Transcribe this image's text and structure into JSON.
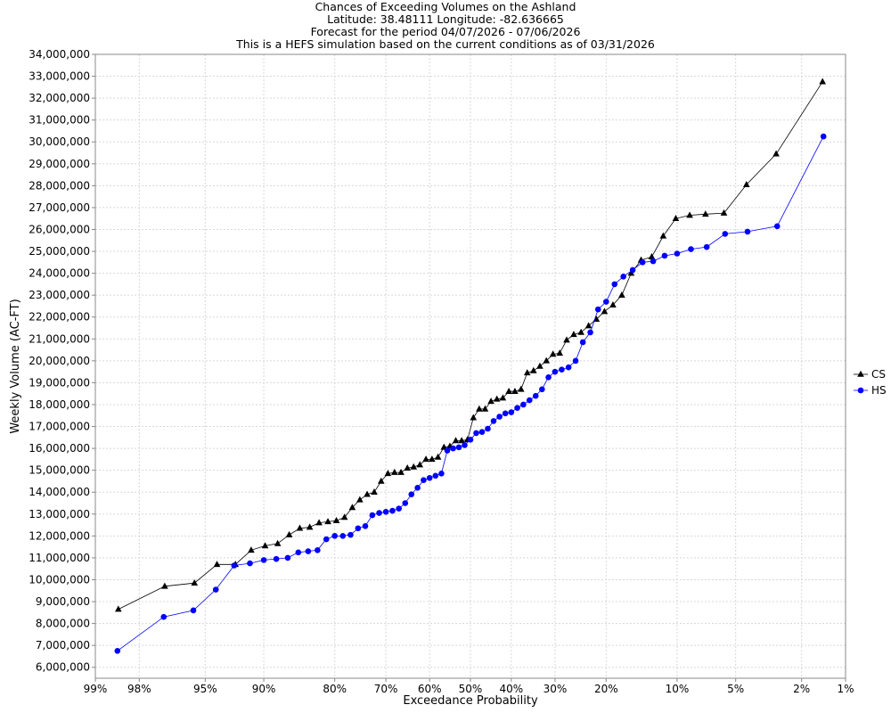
{
  "chart_data": {
    "type": "line",
    "title_lines": [
      "Chances of Exceeding Volumes on the Ashland",
      "Latitude: 38.48111 Longitude: -82.636665",
      "Forecast for the period 04/07/2026 - 07/06/2026",
      "This is a HEFS simulation based on the current conditions as of 03/31/2026"
    ],
    "xlabel": "Exceedance Probability",
    "ylabel": "Weekly Volume (AC-FT)",
    "x_scale": "normal-probability",
    "x_ticks": [
      {
        "p": 0.99,
        "label": "99%"
      },
      {
        "p": 0.98,
        "label": "98%"
      },
      {
        "p": 0.95,
        "label": "95%"
      },
      {
        "p": 0.9,
        "label": "90%"
      },
      {
        "p": 0.8,
        "label": "80%"
      },
      {
        "p": 0.7,
        "label": "70%"
      },
      {
        "p": 0.6,
        "label": "60%"
      },
      {
        "p": 0.5,
        "label": "50%"
      },
      {
        "p": 0.4,
        "label": "40%"
      },
      {
        "p": 0.3,
        "label": "30%"
      },
      {
        "p": 0.2,
        "label": "20%"
      },
      {
        "p": 0.1,
        "label": "10%"
      },
      {
        "p": 0.05,
        "label": "5%"
      },
      {
        "p": 0.02,
        "label": "2%"
      },
      {
        "p": 0.01,
        "label": "1%"
      }
    ],
    "ylim": [
      5500000,
      34000000
    ],
    "y_ticks": [
      {
        "v": 6000000,
        "label": "6,000,000"
      },
      {
        "v": 7000000,
        "label": "7,000,000"
      },
      {
        "v": 8000000,
        "label": "8,000,000"
      },
      {
        "v": 9000000,
        "label": "9,000,000"
      },
      {
        "v": 10000000,
        "label": "10,000,000"
      },
      {
        "v": 11000000,
        "label": "11,000,000"
      },
      {
        "v": 12000000,
        "label": "12,000,000"
      },
      {
        "v": 13000000,
        "label": "13,000,000"
      },
      {
        "v": 14000000,
        "label": "14,000,000"
      },
      {
        "v": 15000000,
        "label": "15,000,000"
      },
      {
        "v": 16000000,
        "label": "16,000,000"
      },
      {
        "v": 17000000,
        "label": "17,000,000"
      },
      {
        "v": 18000000,
        "label": "18,000,000"
      },
      {
        "v": 19000000,
        "label": "19,000,000"
      },
      {
        "v": 20000000,
        "label": "20,000,000"
      },
      {
        "v": 21000000,
        "label": "21,000,000"
      },
      {
        "v": 22000000,
        "label": "22,000,000"
      },
      {
        "v": 23000000,
        "label": "23,000,000"
      },
      {
        "v": 24000000,
        "label": "24,000,000"
      },
      {
        "v": 25000000,
        "label": "25,000,000"
      },
      {
        "v": 26000000,
        "label": "26,000,000"
      },
      {
        "v": 27000000,
        "label": "27,000,000"
      },
      {
        "v": 28000000,
        "label": "28,000,000"
      },
      {
        "v": 29000000,
        "label": "29,000,000"
      },
      {
        "v": 30000000,
        "label": "30,000,000"
      },
      {
        "v": 31000000,
        "label": "31,000,000"
      },
      {
        "v": 32000000,
        "label": "32,000,000"
      },
      {
        "v": 33000000,
        "label": "33,000,000"
      },
      {
        "v": 34000000,
        "label": "34,000,000"
      }
    ],
    "grid": true,
    "legend_position": "right",
    "series": [
      {
        "name": "CS",
        "color": "#000000",
        "marker": "triangle",
        "values": [
          8650000,
          9700000,
          9850000,
          10700000,
          10700000,
          11350000,
          11550000,
          11650000,
          12050000,
          12350000,
          12400000,
          12600000,
          12650000,
          12700000,
          12850000,
          13300000,
          13650000,
          13900000,
          14000000,
          14500000,
          14850000,
          14900000,
          14900000,
          15100000,
          15150000,
          15250000,
          15500000,
          15500000,
          15600000,
          16050000,
          16100000,
          16350000,
          16350000,
          16400000,
          17400000,
          17800000,
          17800000,
          18150000,
          18250000,
          18300000,
          18600000,
          18600000,
          18700000,
          19450000,
          19550000,
          19750000,
          20000000,
          20300000,
          20350000,
          20950000,
          21200000,
          21300000,
          21600000,
          21900000,
          22250000,
          22550000,
          23000000,
          24000000,
          24600000,
          24750000,
          25700000,
          26500000,
          26650000,
          26700000,
          26750000,
          28050000,
          29450000,
          32750000
        ]
      },
      {
        "name": "HS",
        "color": "#0000ff",
        "marker": "circle",
        "values": [
          6750000,
          8300000,
          8600000,
          9550000,
          10650000,
          10750000,
          10900000,
          10950000,
          11000000,
          11250000,
          11300000,
          11350000,
          11850000,
          12000000,
          12000000,
          12050000,
          12350000,
          12450000,
          12950000,
          13050000,
          13100000,
          13150000,
          13250000,
          13500000,
          13900000,
          14200000,
          14550000,
          14650000,
          14750000,
          14850000,
          15900000,
          16000000,
          16050000,
          16150000,
          16400000,
          16700000,
          16750000,
          16900000,
          17250000,
          17450000,
          17600000,
          17650000,
          17850000,
          18000000,
          18200000,
          18400000,
          18700000,
          19250000,
          19500000,
          19600000,
          19700000,
          20000000,
          20850000,
          21300000,
          22350000,
          22700000,
          23500000,
          23850000,
          24150000,
          24500000,
          24550000,
          24800000,
          24900000,
          25100000,
          25200000,
          25800000,
          25900000,
          26150000,
          30250000
        ]
      }
    ]
  }
}
